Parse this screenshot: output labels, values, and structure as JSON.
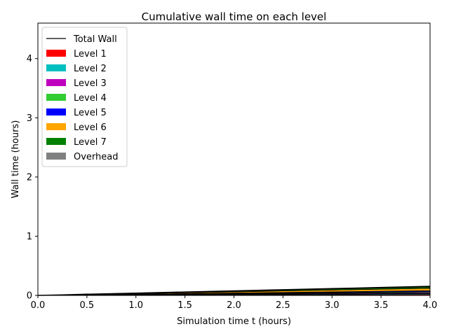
{
  "chart_data": {
    "type": "area",
    "title": "Cumulative wall time on each level",
    "xlabel": "Simulation time t (hours)",
    "ylabel": "Wall time (hours)",
    "xlim": [
      0,
      4
    ],
    "ylim": [
      0,
      4.6
    ],
    "x_ticks": [
      "0.0",
      "0.5",
      "1.0",
      "1.5",
      "2.0",
      "2.5",
      "3.0",
      "3.5",
      "4.0"
    ],
    "y_ticks": [
      "0",
      "1",
      "2",
      "3",
      "4"
    ],
    "grid": false,
    "legend_position": "top-left",
    "x": [
      0,
      0.25,
      0.5,
      1.0,
      1.5,
      2.0,
      2.5,
      3.0,
      3.5,
      4.0
    ],
    "series": [
      {
        "name": "Level 1",
        "color": "#ff0000",
        "values": [
          0,
          0.001,
          0.002,
          0.004,
          0.006,
          0.008,
          0.01,
          0.012,
          0.014,
          0.016
        ]
      },
      {
        "name": "Level 2",
        "color": "#00bfbf",
        "values": [
          0,
          0.001,
          0.002,
          0.004,
          0.006,
          0.008,
          0.01,
          0.012,
          0.014,
          0.016
        ]
      },
      {
        "name": "Level 3",
        "color": "#bf00bf",
        "values": [
          0,
          0.001,
          0.002,
          0.004,
          0.006,
          0.008,
          0.01,
          0.012,
          0.014,
          0.016
        ]
      },
      {
        "name": "Level 4",
        "color": "#32cd32",
        "values": [
          0,
          0.001,
          0.002,
          0.004,
          0.006,
          0.008,
          0.01,
          0.012,
          0.014,
          0.016
        ]
      },
      {
        "name": "Level 5",
        "color": "#0000ff",
        "values": [
          0,
          0.001,
          0.002,
          0.004,
          0.006,
          0.008,
          0.01,
          0.012,
          0.014,
          0.016
        ]
      },
      {
        "name": "Level 6",
        "color": "#ffa500",
        "values": [
          0,
          0.002,
          0.005,
          0.01,
          0.015,
          0.02,
          0.025,
          0.03,
          0.035,
          0.04
        ]
      },
      {
        "name": "Level 7",
        "color": "#008000",
        "values": [
          0,
          0.001,
          0.003,
          0.006,
          0.009,
          0.012,
          0.015,
          0.018,
          0.021,
          0.024
        ]
      },
      {
        "name": "Overhead",
        "color": "#808080",
        "values": [
          0,
          0.001,
          0.002,
          0.003,
          0.004,
          0.005,
          0.006,
          0.007,
          0.008,
          0.009
        ]
      }
    ],
    "total": {
      "name": "Total Wall",
      "color": "#000000",
      "values": [
        0,
        0.009,
        0.02,
        0.039,
        0.058,
        0.077,
        0.096,
        0.115,
        0.134,
        0.153
      ]
    }
  }
}
